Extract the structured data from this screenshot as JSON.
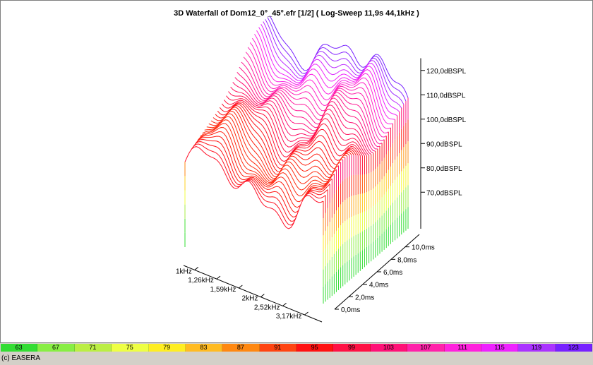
{
  "chart_data": {
    "type": "3d-waterfall",
    "title": "3D Waterfall of Dom12_0°_45°.efr [1/2] ( Log-Sweep 11,9s 44,1kHz )",
    "frequency_ticks": [
      "1kHz",
      "1,26kHz",
      "1,59kHz",
      "2kHz",
      "2,52kHz",
      "3,17kHz"
    ],
    "frequency_range_hz": [
      890,
      3800
    ],
    "time_ticks": [
      "0,0ms",
      "2,0ms",
      "4,0ms",
      "6,0ms",
      "8,0ms",
      "10,0ms"
    ],
    "time_range_ms": [
      0,
      12
    ],
    "level_ticks": [
      "70,0dBSPL",
      "80,0dBSPL",
      "90,0dBSPL",
      "100,0dBSPL",
      "110,0dBSPL",
      "120,0dBSPL"
    ],
    "level_range_dbspl": [
      55,
      125
    ],
    "slices": 40,
    "color_scale_db": [
      63,
      67,
      71,
      75,
      79,
      83,
      87,
      91,
      95,
      99,
      103,
      107,
      111,
      115,
      119,
      123
    ],
    "color_scale_hex": [
      "#33dd33",
      "#88ee44",
      "#bbee44",
      "#eeff44",
      "#ffee22",
      "#ffbb22",
      "#ff8811",
      "#ff4411",
      "#ff1111",
      "#ff1144",
      "#ff1177",
      "#ff22aa",
      "#ff22dd",
      "#ee22ff",
      "#aa33ff",
      "#7722ff"
    ]
  },
  "footer": {
    "copyright": "(c) EASERA"
  }
}
